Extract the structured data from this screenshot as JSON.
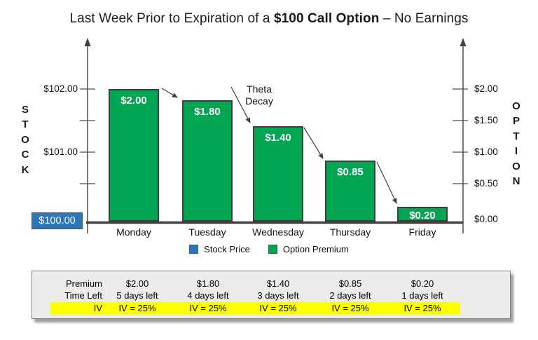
{
  "title_parts": {
    "pre": "Last Week Prior to Expiration of a ",
    "bold": "$100 Call Option",
    "post": " – No Earnings"
  },
  "annotation": {
    "line1": "Theta",
    "line2": "Decay"
  },
  "legend": [
    {
      "label": "Stock Price",
      "color": "#2E75B6",
      "border": "#1f5fa0"
    },
    {
      "label": "Option Premium",
      "color": "#00A651",
      "border": "#1b6e3a"
    }
  ],
  "chart_data": {
    "type": "bar",
    "title": "Last Week Prior to Expiration of a $100 Call Option – No Earnings",
    "categories": [
      "Monday",
      "Tuesday",
      "Wednesday",
      "Thursday",
      "Friday"
    ],
    "values": [
      2.0,
      1.8,
      1.4,
      0.85,
      0.2
    ],
    "bar_labels": [
      "$2.00",
      "$1.80",
      "$1.40",
      "$0.85",
      "$0.20"
    ],
    "bar_color": "#00A651",
    "stock_color": "#2E75B6",
    "annotation": "Theta Decay",
    "legend_entries": [
      "Stock Price",
      "Option Premium"
    ],
    "left_axis": {
      "title": "STOCK",
      "tick_labels": [
        "$102.00",
        "$101.00"
      ],
      "base_value_label": "$100.00",
      "range": [
        100,
        102.5
      ]
    },
    "right_axis": {
      "title": "OPTION",
      "tick_labels": [
        "$2.00",
        "$1.50",
        "$1.00",
        "$0.50",
        "$0.00"
      ],
      "range": [
        0,
        2.5
      ]
    }
  },
  "table": {
    "highlight_color": "#FFFF00",
    "rows": [
      {
        "label": "Premium",
        "values": [
          "$2.00",
          "$1.80",
          "$1.40",
          "$0.85",
          "$0.20"
        ],
        "highlight": false
      },
      {
        "label": "Time Left",
        "values": [
          "5 days left",
          "4 days left",
          "3 days left",
          "2 days left",
          "1 days left"
        ],
        "highlight": false
      },
      {
        "label": "IV",
        "values": [
          "IV = 25%",
          "IV = 25%",
          "IV = 25%",
          "IV = 25%",
          "IV = 25%"
        ],
        "highlight": true
      }
    ]
  }
}
